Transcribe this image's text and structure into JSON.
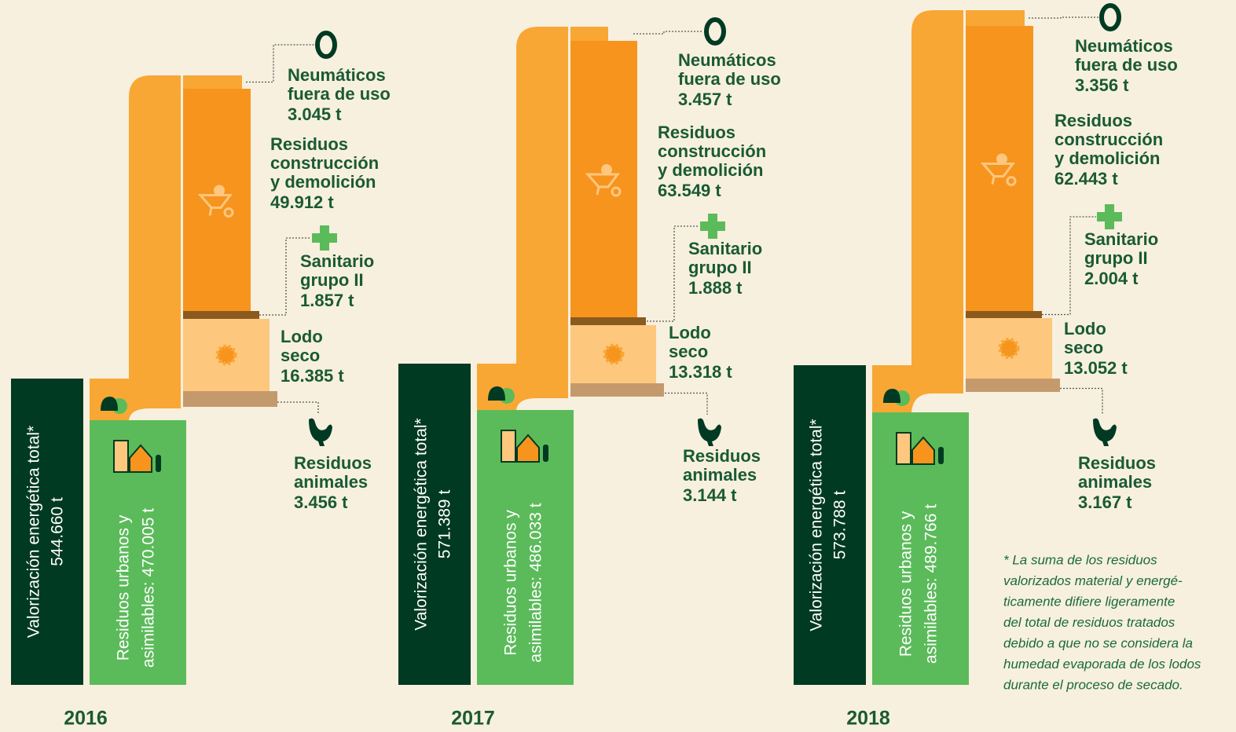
{
  "panels": [
    {
      "year": "2016",
      "total": [
        "Valorización energética total*",
        "544.660 t"
      ],
      "urban": [
        "Residuos urbanos y",
        "asimilables: 470.005 t"
      ],
      "items": [
        {
          "name": [
            "Neumáticos",
            "fuera de uso"
          ],
          "value": "3.045 t"
        },
        {
          "name": [
            "Residuos",
            "construcción",
            "y demolición"
          ],
          "value": "49.912 t"
        },
        {
          "name": [
            "Sanitario",
            "grupo II"
          ],
          "value": "1.857 t"
        },
        {
          "name": [
            "Lodo",
            "seco"
          ],
          "value": "16.385 t"
        },
        {
          "name": [
            "Residuos",
            "animales"
          ],
          "value": "3.456 t"
        }
      ]
    },
    {
      "year": "2017",
      "total": [
        "Valorización energética total*",
        "571.389 t"
      ],
      "urban": [
        "Residuos urbanos y",
        "asimilables: 486.033 t"
      ],
      "items": [
        {
          "name": [
            "Neumáticos",
            "fuera de uso"
          ],
          "value": "3.457 t"
        },
        {
          "name": [
            "Residuos",
            "construcción",
            "y demolición"
          ],
          "value": "63.549 t"
        },
        {
          "name": [
            "Sanitario",
            "grupo II"
          ],
          "value": "1.888 t"
        },
        {
          "name": [
            "Lodo",
            "seco"
          ],
          "value": "13.318 t"
        },
        {
          "name": [
            "Residuos",
            "animales"
          ],
          "value": "3.144 t"
        }
      ]
    },
    {
      "year": "2018",
      "total": [
        "Valorización energética total*",
        "573.788 t"
      ],
      "urban": [
        "Residuos urbanos y",
        "asimilables: 489.766 t"
      ],
      "items": [
        {
          "name": [
            "Neumáticos",
            "fuera de uso"
          ],
          "value": "3.356 t"
        },
        {
          "name": [
            "Residuos",
            "construcción",
            "y demolición"
          ],
          "value": "62.443 t"
        },
        {
          "name": [
            "Sanitario",
            "grupo II"
          ],
          "value": "2.004 t"
        },
        {
          "name": [
            "Lodo",
            "seco"
          ],
          "value": "13.052 t"
        },
        {
          "name": [
            "Residuos",
            "animales"
          ],
          "value": "3.167 t"
        }
      ]
    }
  ],
  "footnote": [
    "* La suma de los residuos",
    "valorizados material y energé-",
    "ticamente difiere ligeramente",
    "del total de residuos tratados",
    "debido a que no se considera la",
    "humedad evaporada de los lodos",
    "durante el proceso de secado."
  ]
}
